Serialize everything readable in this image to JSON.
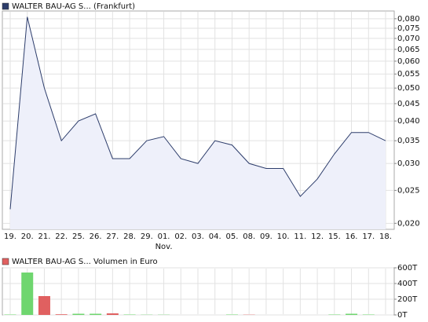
{
  "chart_data": [
    {
      "type": "area",
      "title": "WALTER BAU-AG S... (Frankfurt)",
      "legend_color": "#2d3d6b",
      "categories": [
        "19.",
        "20.",
        "21.",
        "22.",
        "25.",
        "26.",
        "27.",
        "28.",
        "29.",
        "01.",
        "02.",
        "03.",
        "04.",
        "05.",
        "08.",
        "09.",
        "10.",
        "11.",
        "12.",
        "15.",
        "16.",
        "17.",
        "18."
      ],
      "annotations": [
        {
          "text": "Nov.",
          "at": "01."
        }
      ],
      "series": [
        {
          "name": "WALTER BAU-AG S...",
          "color": "#2d3d6b",
          "fill": "#eef0fa",
          "values": [
            0.022,
            0.081,
            0.05,
            0.035,
            0.04,
            0.042,
            0.031,
            0.031,
            0.035,
            0.036,
            0.031,
            0.03,
            0.035,
            0.034,
            0.03,
            0.029,
            0.029,
            0.024,
            0.027,
            0.032,
            0.037,
            0.037,
            0.035
          ]
        }
      ],
      "log_scale": true,
      "grid": true,
      "ylim": [
        0.0192,
        0.0843
      ],
      "yticks": [
        {
          "value": 0.08,
          "label": "0,080"
        },
        {
          "value": 0.075,
          "label": "0,075"
        },
        {
          "value": 0.07,
          "label": "0,070"
        },
        {
          "value": 0.065,
          "label": "0,065"
        },
        {
          "value": 0.06,
          "label": "0,060"
        },
        {
          "value": 0.055,
          "label": "0,055"
        },
        {
          "value": 0.05,
          "label": "0,050"
        },
        {
          "value": 0.045,
          "label": "0,045"
        },
        {
          "value": 0.04,
          "label": "0,040"
        },
        {
          "value": 0.035,
          "label": "0,035"
        },
        {
          "value": 0.03,
          "label": "0,030"
        },
        {
          "value": 0.025,
          "label": "0,025"
        },
        {
          "value": 0.02,
          "label": "0,020"
        }
      ]
    },
    {
      "type": "bar",
      "title": "WALTER BAU-AG S... Volumen in Euro",
      "legend_color": "#e06060",
      "values": [
        5000,
        540000,
        240000,
        8000,
        15000,
        15000,
        20000,
        5000,
        3000,
        3000,
        0,
        0,
        0,
        5000,
        3000,
        0,
        0,
        0,
        0,
        5000,
        15000,
        5000,
        0
      ],
      "colors": [
        "#6fd66f",
        "#6fd66f",
        "#e06060",
        "#e06060",
        "#6fd66f",
        "#6fd66f",
        "#e06060",
        "#6fd66f",
        "#6fd66f",
        "#6fd66f",
        "#6fd66f",
        "#6fd66f",
        "#6fd66f",
        "#6fd66f",
        "#e06060",
        "#6fd66f",
        "#6fd66f",
        "#6fd66f",
        "#6fd66f",
        "#6fd66f",
        "#6fd66f",
        "#6fd66f",
        "#6fd66f"
      ],
      "grid": true,
      "ylim": [
        0,
        600000
      ],
      "yticks": [
        {
          "value": 0,
          "label": "0T"
        },
        {
          "value": 200000,
          "label": "200T"
        },
        {
          "value": 400000,
          "label": "400T"
        },
        {
          "value": 600000,
          "label": "600T"
        }
      ]
    }
  ]
}
